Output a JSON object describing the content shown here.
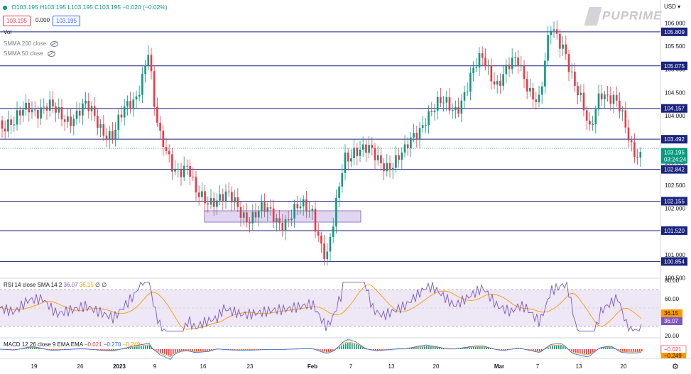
{
  "symbol_bar": {
    "o": "O103.195",
    "h": "H103.195",
    "l": "L103.195",
    "c": "C103.195",
    "chg": "−0.020 (−0.02%)"
  },
  "price_buttons": {
    "sell": "103.195",
    "spread": "0.000",
    "buy": "103.195"
  },
  "indicators": {
    "vol": "Vol",
    "smma200": "SMMA 200 close",
    "smma50": "SMMA 50 close"
  },
  "currency": "USD",
  "brand": "PUPRIME",
  "price_axis": {
    "ticks": [
      "106.000",
      "105.500",
      "105.000",
      "104.500",
      "104.000",
      "103.500",
      "103.000",
      "102.500",
      "102.000",
      "101.500",
      "101.000",
      "100.500"
    ],
    "levels": [
      "105.809",
      "105.075",
      "104.157",
      "103.492",
      "102.842",
      "102.155",
      "101.520",
      "100.854"
    ],
    "current": "103.195",
    "countdown": "03:24:24"
  },
  "rsi": {
    "label": "RSI 14 close SMA 14 2",
    "v1": "36.07",
    "v2": "36.15",
    "v3": "∅ ∅",
    "ticks": [
      "80.00",
      "60.00",
      "40.00",
      "20.00"
    ],
    "box1": "36.15",
    "box2": "36.07"
  },
  "macd": {
    "label": "MACD 12 26 close 9 EMA EMA",
    "v1": "−0.021",
    "v2": "−0.270",
    "v3": "−0.249",
    "box1": "−0.021",
    "box2": "−0.249"
  },
  "time_axis": [
    "19",
    "26",
    "2023",
    "9",
    "16",
    "23",
    "Feb",
    "7",
    "13",
    "20",
    "Mar",
    "7",
    "13",
    "20"
  ],
  "colors": {
    "up": "#089981",
    "down": "#f23645",
    "level": "#1a237e",
    "rsi": "#7e57c2",
    "signal": "#ff9800",
    "macd": "#2962ff",
    "zone": "#d1c4e9"
  }
}
